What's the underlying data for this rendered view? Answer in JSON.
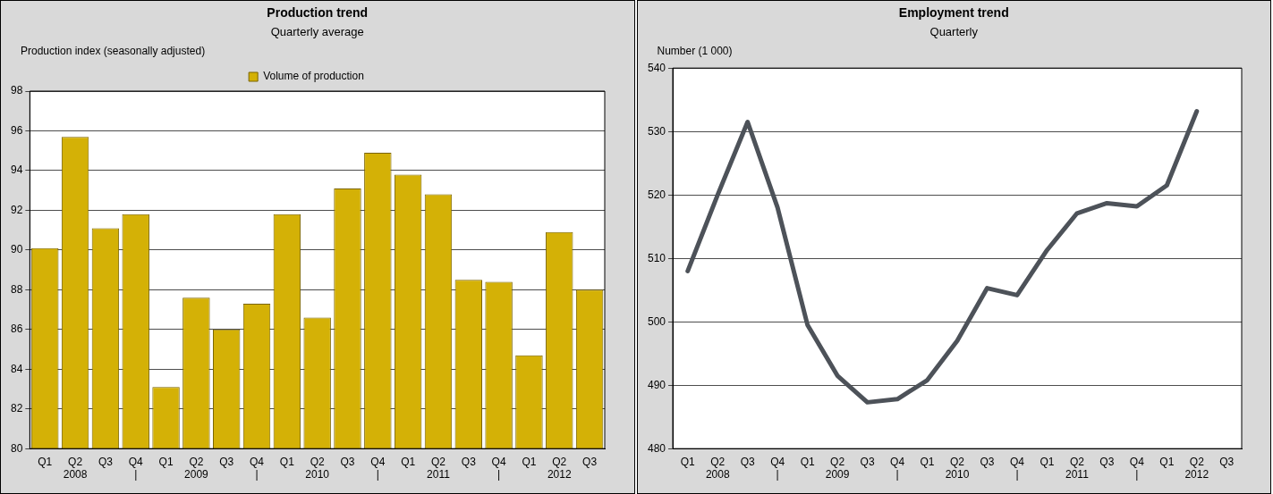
{
  "chart_data": [
    {
      "type": "bar",
      "title": "Production trend",
      "subtitle": "Quarterly average",
      "ylabel": "Production index (seasonally adjusted)",
      "categories": [
        "Q1",
        "Q2\n2008",
        "Q3",
        "Q4\n|",
        "Q1",
        "Q2\n2009",
        "Q3",
        "Q4\n|",
        "Q1",
        "Q2\n2010",
        "Q3",
        "Q4\n|",
        "Q1",
        "Q2\n2011",
        "Q3",
        "Q4\n|",
        "Q1",
        "Q2\n2012",
        "Q3"
      ],
      "series": [
        {
          "name": "Volume of production",
          "color": "#d4b106",
          "values": [
            90.1,
            95.7,
            91.1,
            91.8,
            83.1,
            87.6,
            86.0,
            87.3,
            91.8,
            86.6,
            93.1,
            94.9,
            93.8,
            92.8,
            88.5,
            88.4,
            84.7,
            90.9,
            88.0
          ]
        }
      ],
      "ylim": [
        80,
        98
      ],
      "yticks": [
        80,
        82,
        84,
        86,
        88,
        90,
        92,
        94,
        96,
        98
      ],
      "grid": "y",
      "legend": "top"
    },
    {
      "type": "line",
      "title": "Employment trend",
      "subtitle": "Quarterly",
      "ylabel": "Number (1 000)",
      "categories": [
        "Q1",
        "Q2\n2008",
        "Q3",
        "Q4\n|",
        "Q1",
        "Q2\n2009",
        "Q3",
        "Q4\n|",
        "Q1",
        "Q2\n2010",
        "Q3",
        "Q4\n|",
        "Q1",
        "Q2\n2011",
        "Q3",
        "Q4\n|",
        "Q1",
        "Q2\n2012",
        "Q3"
      ],
      "series": [
        {
          "color": "#4d5259",
          "values": [
            508,
            520,
            531.5,
            518,
            499.5,
            491.5,
            487.3,
            487.8,
            490.8,
            497,
            505.3,
            504.2,
            511.3,
            517.1,
            518.7,
            518.2,
            521.5,
            533.2,
            null
          ]
        }
      ],
      "ylim": [
        480,
        540
      ],
      "yticks": [
        480,
        490,
        500,
        510,
        520,
        530,
        540
      ],
      "grid": "y",
      "marker": "none",
      "line_style": "solid"
    }
  ]
}
